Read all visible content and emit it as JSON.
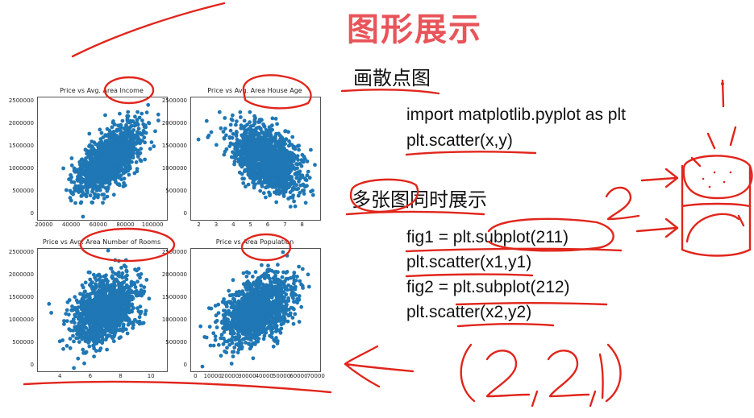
{
  "slide": {
    "title": "图形展示",
    "heading1": "画散点图",
    "code1": [
      "import matplotlib.pyplot as plt",
      "plt.scatter(x,y)"
    ],
    "heading2": "多张图同时展示",
    "code2": [
      "fig1 = plt.subplot(211)",
      "plt.scatter(x1,y1)",
      "fig2 = plt.subplot(212)",
      "plt.scatter(x2,y2)"
    ],
    "accent_color": "#e8545a",
    "ink_color": "#e0261c"
  },
  "handwriting": {
    "digit_two": "2",
    "tuple": "(2,2,1)"
  },
  "chart_data": [
    {
      "type": "scatter",
      "title": "Price vs Avg. Area Income",
      "xticks": [
        "20000",
        "40000",
        "60000",
        "80000",
        "100000"
      ],
      "yticks": [
        "0",
        "500000",
        "1000000",
        "1500000",
        "2000000",
        "2500000"
      ],
      "xlim": [
        15000,
        110000
      ],
      "ylim": [
        -100000,
        2600000
      ],
      "color": "#1f77b4",
      "center": [
        68000,
        1230000
      ],
      "spread": [
        11000,
        360000
      ],
      "corr": 0.64
    },
    {
      "type": "scatter",
      "title": "Price vs Avg. Area House Age",
      "xticks": [
        "2",
        "3",
        "4",
        "5",
        "6",
        "7",
        "8"
      ],
      "yticks": [
        "0",
        "500000",
        "1000000",
        "1500000",
        "2000000",
        "2500000"
      ],
      "xlim": [
        1.5,
        9
      ],
      "ylim": [
        -100000,
        2600000
      ],
      "color": "#1f77b4",
      "center": [
        6,
        1230000
      ],
      "spread": [
        1.0,
        360000
      ],
      "corr": -0.45
    },
    {
      "type": "scatter",
      "title": "Price vs Avg. Area Number of Rooms",
      "xticks": [
        "4",
        "6",
        "8",
        "10"
      ],
      "yticks": [
        "0",
        "500000",
        "1000000",
        "1500000",
        "2000000",
        "2500000"
      ],
      "xlim": [
        2.5,
        11
      ],
      "ylim": [
        -100000,
        2600000
      ],
      "color": "#1f77b4",
      "center": [
        7,
        1230000
      ],
      "spread": [
        1.0,
        360000
      ],
      "corr": 0.33
    },
    {
      "type": "scatter",
      "title": "Price vs Area Population",
      "xticks": [
        "0",
        "10000",
        "20000",
        "30000",
        "40000",
        "50000",
        "60000",
        "70000"
      ],
      "yticks": [
        "0",
        "500000",
        "1000000",
        "1500000",
        "2000000",
        "2500000"
      ],
      "xlim": [
        -3000,
        72000
      ],
      "ylim": [
        -100000,
        2600000
      ],
      "color": "#1f77b4",
      "center": [
        36000,
        1230000
      ],
      "spread": [
        10000,
        360000
      ],
      "corr": 0.41
    }
  ]
}
